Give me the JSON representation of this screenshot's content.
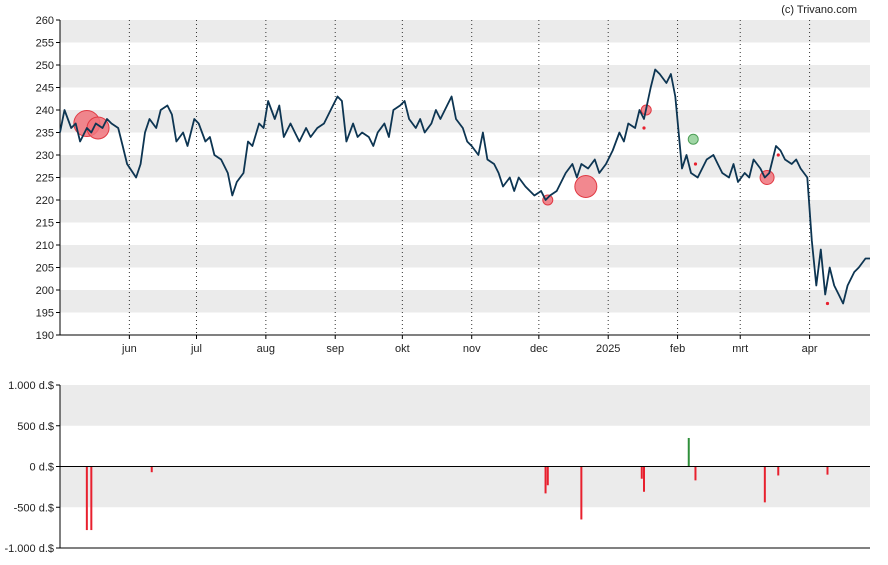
{
  "credit": "(c) Trivano.com",
  "colors": {
    "price_line": "#0d3552",
    "band": "#ebebeb",
    "axis": "#000000",
    "sell": "#e8202e",
    "buy": "#2f8f3a",
    "sell_bubble_fill": "#f0737b",
    "sell_bubble_stroke": "#e03a44",
    "buy_bubble_fill": "#8fcf95",
    "buy_bubble_stroke": "#4f9f58"
  },
  "chart_data": [
    {
      "type": "line",
      "ylim": [
        190,
        260
      ],
      "y_ticks": [
        "260",
        "255",
        "250",
        "245",
        "240",
        "235",
        "230",
        "225",
        "220",
        "215",
        "210",
        "205",
        "200",
        "195",
        "190"
      ],
      "x_ticks": [
        "jun",
        "jul",
        "aug",
        "sep",
        "okt",
        "nov",
        "dec",
        "2025",
        "feb",
        "mrt",
        "apr"
      ],
      "x_tick_dates": [
        "2024-06-01",
        "2024-07-01",
        "2024-08-01",
        "2024-09-01",
        "2024-10-01",
        "2024-11-01",
        "2024-12-01",
        "2025-01-01",
        "2025-02-01",
        "2025-03-01",
        "2025-04-01"
      ],
      "x_range": [
        "2024-05-01",
        "2025-04-28"
      ],
      "grid": "vertical dotted lines at month ticks, alternating horizontal bands",
      "series": [
        {
          "points": [
            [
              "2024-05-01",
              235
            ],
            [
              "2024-05-03",
              240
            ],
            [
              "2024-05-06",
              236
            ],
            [
              "2024-05-08",
              237
            ],
            [
              "2024-05-10",
              233
            ],
            [
              "2024-05-13",
              236
            ],
            [
              "2024-05-15",
              235
            ],
            [
              "2024-05-17",
              237
            ],
            [
              "2024-05-20",
              236
            ],
            [
              "2024-05-22",
              238
            ],
            [
              "2024-05-24",
              237
            ],
            [
              "2024-05-27",
              236
            ],
            [
              "2024-05-29",
              232
            ],
            [
              "2024-05-31",
              228
            ],
            [
              "2024-06-04",
              225
            ],
            [
              "2024-06-06",
              228
            ],
            [
              "2024-06-08",
              235
            ],
            [
              "2024-06-10",
              238
            ],
            [
              "2024-06-13",
              236
            ],
            [
              "2024-06-15",
              240
            ],
            [
              "2024-06-18",
              241
            ],
            [
              "2024-06-20",
              239
            ],
            [
              "2024-06-22",
              233
            ],
            [
              "2024-06-25",
              235
            ],
            [
              "2024-06-27",
              232
            ],
            [
              "2024-06-30",
              238
            ],
            [
              "2024-07-02",
              237
            ],
            [
              "2024-07-05",
              233
            ],
            [
              "2024-07-07",
              234
            ],
            [
              "2024-07-09",
              230
            ],
            [
              "2024-07-12",
              229
            ],
            [
              "2024-07-15",
              226
            ],
            [
              "2024-07-17",
              221
            ],
            [
              "2024-07-19",
              224
            ],
            [
              "2024-07-22",
              226
            ],
            [
              "2024-07-24",
              233
            ],
            [
              "2024-07-26",
              232
            ],
            [
              "2024-07-29",
              237
            ],
            [
              "2024-07-31",
              236
            ],
            [
              "2024-08-02",
              242
            ],
            [
              "2024-08-05",
              238
            ],
            [
              "2024-08-07",
              241
            ],
            [
              "2024-08-09",
              234
            ],
            [
              "2024-08-12",
              237
            ],
            [
              "2024-08-14",
              235
            ],
            [
              "2024-08-16",
              233
            ],
            [
              "2024-08-19",
              236
            ],
            [
              "2024-08-21",
              234
            ],
            [
              "2024-08-24",
              236
            ],
            [
              "2024-08-27",
              237
            ],
            [
              "2024-08-30",
              240
            ],
            [
              "2024-09-02",
              243
            ],
            [
              "2024-09-04",
              242
            ],
            [
              "2024-09-06",
              233
            ],
            [
              "2024-09-09",
              237
            ],
            [
              "2024-09-11",
              234
            ],
            [
              "2024-09-13",
              235
            ],
            [
              "2024-09-16",
              234
            ],
            [
              "2024-09-18",
              232
            ],
            [
              "2024-09-20",
              235
            ],
            [
              "2024-09-23",
              237
            ],
            [
              "2024-09-25",
              234
            ],
            [
              "2024-09-27",
              240
            ],
            [
              "2024-09-30",
              241
            ],
            [
              "2024-10-02",
              242
            ],
            [
              "2024-10-04",
              238
            ],
            [
              "2024-10-07",
              236
            ],
            [
              "2024-10-09",
              238
            ],
            [
              "2024-10-11",
              235
            ],
            [
              "2024-10-14",
              237
            ],
            [
              "2024-10-16",
              240
            ],
            [
              "2024-10-18",
              238
            ],
            [
              "2024-10-21",
              241
            ],
            [
              "2024-10-23",
              243
            ],
            [
              "2024-10-25",
              238
            ],
            [
              "2024-10-28",
              236
            ],
            [
              "2024-10-30",
              233
            ],
            [
              "2024-11-01",
              232
            ],
            [
              "2024-11-04",
              230
            ],
            [
              "2024-11-06",
              235
            ],
            [
              "2024-11-08",
              229
            ],
            [
              "2024-11-11",
              228
            ],
            [
              "2024-11-13",
              226
            ],
            [
              "2024-11-15",
              223
            ],
            [
              "2024-11-18",
              225
            ],
            [
              "2024-11-20",
              222
            ],
            [
              "2024-11-22",
              225
            ],
            [
              "2024-11-25",
              223
            ],
            [
              "2024-11-27",
              222
            ],
            [
              "2024-11-29",
              221
            ],
            [
              "2024-12-02",
              222
            ],
            [
              "2024-12-04",
              220
            ],
            [
              "2024-12-06",
              221
            ],
            [
              "2024-12-09",
              222
            ],
            [
              "2024-12-11",
              224
            ],
            [
              "2024-12-13",
              226
            ],
            [
              "2024-12-16",
              228
            ],
            [
              "2024-12-18",
              225
            ],
            [
              "2024-12-20",
              228
            ],
            [
              "2024-12-23",
              227
            ],
            [
              "2024-12-26",
              229
            ],
            [
              "2024-12-28",
              226
            ],
            [
              "2024-12-31",
              228
            ],
            [
              "2025-01-03",
              231
            ],
            [
              "2025-01-06",
              235
            ],
            [
              "2025-01-08",
              233
            ],
            [
              "2025-01-10",
              237
            ],
            [
              "2025-01-13",
              236
            ],
            [
              "2025-01-15",
              240
            ],
            [
              "2025-01-17",
              238
            ],
            [
              "2025-01-20",
              245
            ],
            [
              "2025-01-22",
              249
            ],
            [
              "2025-01-24",
              248
            ],
            [
              "2025-01-27",
              246
            ],
            [
              "2025-01-29",
              248
            ],
            [
              "2025-01-31",
              243
            ],
            [
              "2025-02-03",
              227
            ],
            [
              "2025-02-05",
              230
            ],
            [
              "2025-02-07",
              226
            ],
            [
              "2025-02-10",
              225
            ],
            [
              "2025-02-12",
              227
            ],
            [
              "2025-02-14",
              229
            ],
            [
              "2025-02-17",
              230
            ],
            [
              "2025-02-19",
              228
            ],
            [
              "2025-02-21",
              226
            ],
            [
              "2025-02-24",
              225
            ],
            [
              "2025-02-26",
              228
            ],
            [
              "2025-02-28",
              224
            ],
            [
              "2025-03-03",
              226
            ],
            [
              "2025-03-05",
              225
            ],
            [
              "2025-03-07",
              229
            ],
            [
              "2025-03-10",
              227
            ],
            [
              "2025-03-12",
              225
            ],
            [
              "2025-03-14",
              226
            ],
            [
              "2025-03-17",
              232
            ],
            [
              "2025-03-19",
              231
            ],
            [
              "2025-03-21",
              229
            ],
            [
              "2025-03-24",
              228
            ],
            [
              "2025-03-26",
              229
            ],
            [
              "2025-03-28",
              227
            ],
            [
              "2025-03-31",
              225
            ],
            [
              "2025-04-02",
              211
            ],
            [
              "2025-04-04",
              201
            ],
            [
              "2025-04-06",
              209
            ],
            [
              "2025-04-08",
              199
            ],
            [
              "2025-04-10",
              205
            ],
            [
              "2025-04-12",
              201
            ],
            [
              "2025-04-14",
              199
            ],
            [
              "2025-04-16",
              197
            ],
            [
              "2025-04-18",
              201
            ],
            [
              "2025-04-21",
              204
            ],
            [
              "2025-04-23",
              205
            ],
            [
              "2025-04-26",
              207
            ],
            [
              "2025-04-28",
              207
            ]
          ]
        }
      ],
      "bubbles": [
        {
          "date": "2024-05-13",
          "value": 237,
          "kind": "sell",
          "r": 13
        },
        {
          "date": "2024-05-18",
          "value": 236,
          "kind": "sell",
          "r": 11
        },
        {
          "date": "2024-12-05",
          "value": 220,
          "kind": "sell",
          "r": 5
        },
        {
          "date": "2024-12-22",
          "value": 223,
          "kind": "sell",
          "r": 11
        },
        {
          "date": "2025-01-17",
          "value": 236,
          "kind": "sell",
          "r": 2
        },
        {
          "date": "2025-01-18",
          "value": 240,
          "kind": "sell",
          "r": 5
        },
        {
          "date": "2025-02-08",
          "value": 233.5,
          "kind": "buy",
          "r": 5
        },
        {
          "date": "2025-02-09",
          "value": 228,
          "kind": "sell",
          "r": 2
        },
        {
          "date": "2025-03-13",
          "value": 225,
          "kind": "sell",
          "r": 7
        },
        {
          "date": "2025-03-18",
          "value": 230,
          "kind": "sell",
          "r": 2
        },
        {
          "date": "2025-04-09",
          "value": 197,
          "kind": "sell",
          "r": 2
        }
      ]
    },
    {
      "type": "bar",
      "ylim": [
        -1000,
        1000
      ],
      "y_ticks": [
        "1.000 d.$",
        "500 d.$",
        "0 d.$",
        "-500 d.$",
        "-1.000 d.$"
      ],
      "series": [
        {
          "points": [
            [
              "2024-05-13",
              -780
            ],
            [
              "2024-05-15",
              -780
            ],
            [
              "2024-06-11",
              -70
            ],
            [
              "2024-12-04",
              -330
            ],
            [
              "2024-12-05",
              -230
            ],
            [
              "2024-12-20",
              -650
            ],
            [
              "2025-01-16",
              -150
            ],
            [
              "2025-01-17",
              -310
            ],
            [
              "2025-02-06",
              350
            ],
            [
              "2025-02-09",
              -170
            ],
            [
              "2025-03-12",
              -440
            ],
            [
              "2025-03-18",
              -110
            ],
            [
              "2025-04-09",
              -100
            ]
          ]
        }
      ]
    }
  ]
}
